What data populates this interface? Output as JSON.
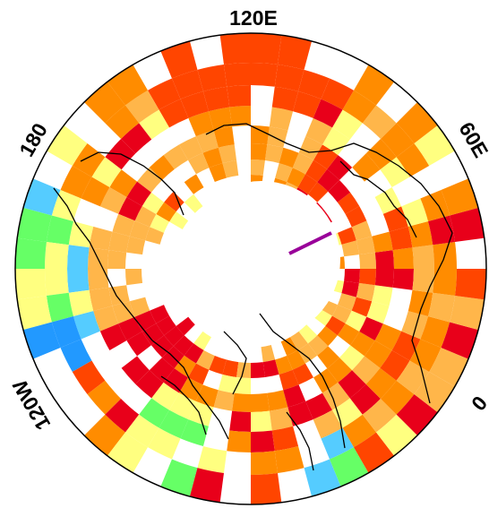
{
  "projection": "north-polar-stereographic",
  "longitude_labels": {
    "top": "120E",
    "upper_right": "60E",
    "right": "0",
    "upper_left": "180",
    "left": "120W"
  },
  "colors": {
    "red": "#e8001a",
    "red_orange": "#ff4500",
    "orange": "#ff8c00",
    "light_orange": "#ffb64a",
    "yellow": "#ffff80",
    "green": "#66ff66",
    "light_blue": "#55ccff",
    "blue": "#2299ff",
    "purple": "#990099",
    "coastline": "#000000",
    "outline": "#000000"
  },
  "legend": "none"
}
